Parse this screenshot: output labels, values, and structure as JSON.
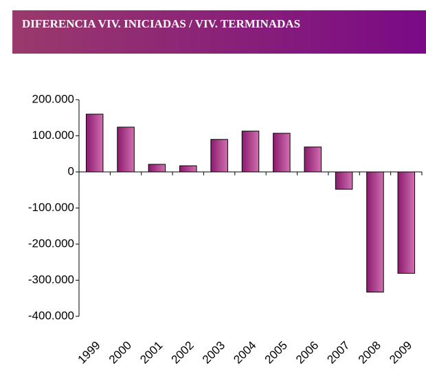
{
  "chart_data": {
    "type": "bar",
    "title": "DIFERENCIA VIV. INICIADAS / VIV. TERMINADAS",
    "categories": [
      "1999",
      "2000",
      "2001",
      "2002",
      "2003",
      "2004",
      "2005",
      "2006",
      "2007",
      "2008",
      "2009"
    ],
    "values": [
      160000,
      124000,
      21000,
      17000,
      90000,
      113000,
      107000,
      69000,
      -48000,
      -333000,
      -281000
    ],
    "color": "#8b1a6e",
    "ylim": [
      -400000,
      200000
    ],
    "yticks": [
      {
        "value": -400000,
        "label": "-400.000"
      },
      {
        "value": -300000,
        "label": "-300.000"
      },
      {
        "value": -200000,
        "label": "-200.000"
      },
      {
        "value": -100000,
        "label": "-100.000"
      },
      0,
      {
        "value": 100000,
        "label": "100.000"
      },
      {
        "value": 200000,
        "label": "200.000"
      }
    ],
    "grid": false
  }
}
